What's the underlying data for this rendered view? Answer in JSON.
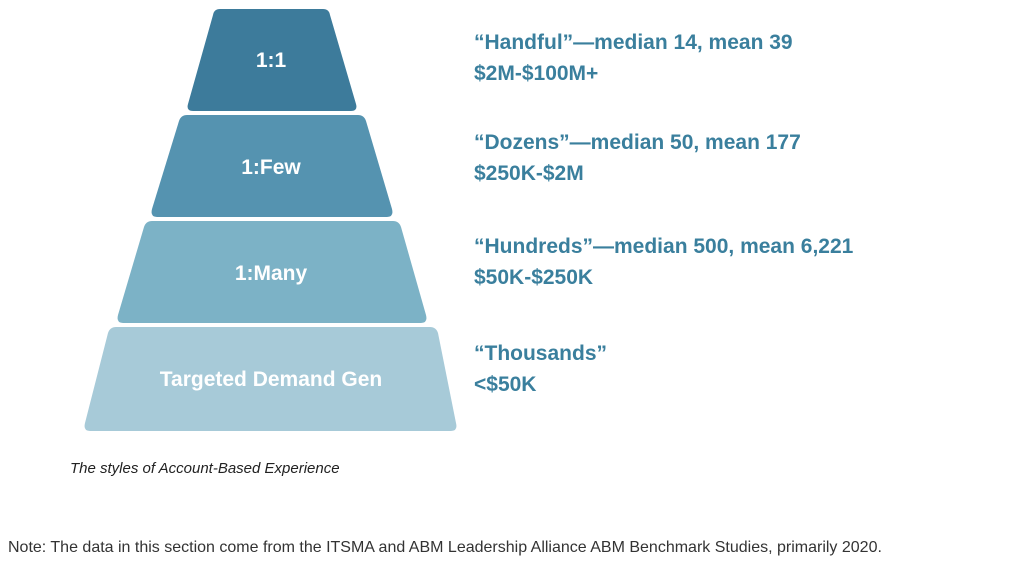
{
  "colors": {
    "tier_1": "#3d7b9b",
    "tier_2": "#5593b0",
    "tier_3": "#7cb2c6",
    "tier_4": "#a7cad8",
    "description_text": "#3a7f9d"
  },
  "tiers": [
    {
      "label": "1:1",
      "headline": "“Handful”—median 14, mean 39",
      "range": "$2M-$100M+"
    },
    {
      "label": "1:Few",
      "headline": "“Dozens”—median 50, mean 177",
      "range": "$250K-$2M"
    },
    {
      "label": "1:Many",
      "headline": "“Hundreds”—median 500, mean 6,221",
      "range": "$50K-$250K"
    },
    {
      "label": "Targeted Demand Gen",
      "headline": "“Thousands”",
      "range": "<$50K"
    }
  ],
  "caption": "The styles of Account-Based Experience",
  "note": "Note: The data in this section come from the ITSMA and ABM Leadership Alliance ABM Benchmark Studies, primarily 2020."
}
